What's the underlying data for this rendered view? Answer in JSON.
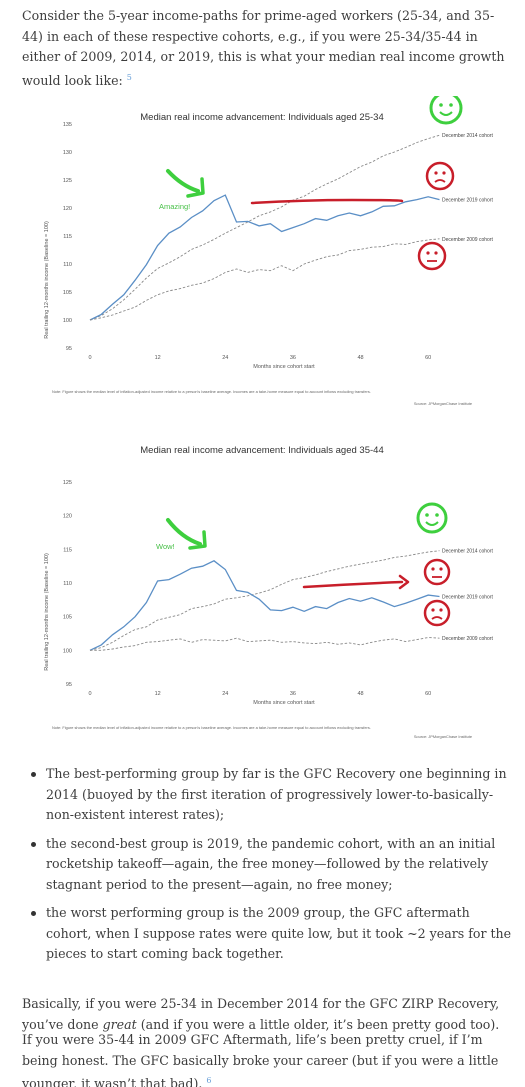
{
  "intro": {
    "text": "Consider the 5-year income-paths for prime-aged workers (25-34, and 35-44) in each of these respective cohorts, e.g., if you were 25-34/35-44 in either of 2009, 2014, or 2019, this is what your median real income growth would look like:",
    "footnote": "5"
  },
  "chart_data": [
    {
      "type": "line",
      "title": "Median real income advancement: Individuals aged 25-34",
      "xlabel": "Months since cohort start",
      "ylabel": "Real trailing 12-months income (Baseline = 100)",
      "xlim": [
        0,
        66
      ],
      "ylim": [
        95,
        135
      ],
      "xticks": [
        0,
        12,
        24,
        36,
        48,
        60
      ],
      "yticks": [
        95,
        100,
        105,
        110,
        115,
        120,
        125,
        130,
        135
      ],
      "x": [
        0,
        2,
        4,
        6,
        8,
        10,
        12,
        14,
        16,
        18,
        20,
        22,
        24,
        26,
        28,
        30,
        32,
        34,
        36,
        38,
        40,
        42,
        44,
        46,
        48,
        50,
        52,
        54,
        56,
        58,
        60,
        62
      ],
      "series": [
        {
          "name": "December 2014 cohort",
          "color": "#888888",
          "dash": true,
          "values": [
            100,
            100.8,
            102,
            103.6,
            105.5,
            107.5,
            109.2,
            110.2,
            111.3,
            112.6,
            113.4,
            114.4,
            115.5,
            116.5,
            117.5,
            118.6,
            119.3,
            120.2,
            121.4,
            122.1,
            123.3,
            124.3,
            125.2,
            126.3,
            127.4,
            128.2,
            129.3,
            130,
            130.8,
            131.7,
            132.4,
            133
          ]
        },
        {
          "name": "December 2019 cohort",
          "color": "#5b8fc6",
          "dash": false,
          "values": [
            100,
            101,
            102.8,
            104.5,
            107.1,
            109.9,
            113.3,
            115.5,
            116.6,
            118.3,
            119.5,
            121.3,
            122.3,
            117.5,
            117.6,
            116.8,
            117.2,
            115.8,
            116.5,
            117.2,
            118.1,
            117.8,
            118.6,
            119.1,
            118.6,
            119.3,
            120.3,
            120.4,
            121.1,
            121.5,
            122,
            121.5
          ]
        },
        {
          "name": "December 2009 cohort",
          "color": "#888888",
          "dash": true,
          "values": [
            100,
            100.4,
            100.9,
            101.6,
            102.3,
            103.5,
            104.5,
            105.2,
            105.6,
            106.2,
            106.6,
            107.4,
            108.5,
            109.1,
            108.5,
            109,
            108.8,
            109.7,
            108.8,
            110,
            110.7,
            111.3,
            111.6,
            112.4,
            112.6,
            113,
            113.1,
            113.6,
            113.5,
            114,
            114.3,
            114.5
          ]
        }
      ],
      "annotations": {
        "peak_label": "Amazing!"
      },
      "note": "Note: Figure shows the median level of inflation-adjusted income relative to a person's baseline average. Incomes are a take-home measure equal to account inflows excluding transfers.",
      "source": "Source: JPMorganChase Institute"
    },
    {
      "type": "line",
      "title": "Median real income advancement: Individuals aged 35-44",
      "xlabel": "Months since cohort start",
      "ylabel": "Real trailing 12-months income (Baseline = 100)",
      "xlim": [
        0,
        66
      ],
      "ylim": [
        95,
        125
      ],
      "xticks": [
        0,
        12,
        24,
        36,
        48,
        60
      ],
      "yticks": [
        95,
        100,
        105,
        110,
        115,
        120,
        125
      ],
      "x": [
        0,
        2,
        4,
        6,
        8,
        10,
        12,
        14,
        16,
        18,
        20,
        22,
        24,
        26,
        28,
        30,
        32,
        34,
        36,
        38,
        40,
        42,
        44,
        46,
        48,
        50,
        52,
        54,
        56,
        58,
        60,
        62
      ],
      "series": [
        {
          "name": "December 2014 cohort",
          "color": "#888888",
          "dash": true,
          "values": [
            100,
            100.4,
            101.2,
            102.2,
            103.1,
            103.5,
            104.5,
            104.9,
            105.3,
            106.2,
            106.5,
            106.9,
            107.6,
            107.8,
            108.1,
            108.5,
            109,
            109.8,
            110.5,
            110.8,
            111.2,
            111.7,
            112.1,
            112.5,
            112.8,
            113.1,
            113.4,
            113.8,
            114,
            114.3,
            114.6,
            114.8
          ]
        },
        {
          "name": "December 2019 cohort",
          "color": "#5b8fc6",
          "dash": false,
          "values": [
            100,
            100.8,
            102.3,
            103.5,
            105,
            107.1,
            110.3,
            110.5,
            111.3,
            112.2,
            112.5,
            113.3,
            112,
            108.9,
            108.6,
            107.6,
            106,
            105.9,
            106.4,
            105.8,
            106.5,
            106.2,
            107.1,
            107.7,
            107.3,
            107.8,
            107.2,
            106.5,
            107,
            107.6,
            108.2,
            108
          ]
        },
        {
          "name": "December 2009 cohort",
          "color": "#888888",
          "dash": true,
          "values": [
            100,
            100,
            100.2,
            100.5,
            100.7,
            101.2,
            101.3,
            101.5,
            101.7,
            101.2,
            101.6,
            101.5,
            101.4,
            101.8,
            101.3,
            101.4,
            101.5,
            101.2,
            101.3,
            101.1,
            101,
            101.2,
            100.9,
            101.1,
            100.8,
            101.2,
            101.5,
            101.7,
            101.3,
            101.6,
            101.9,
            101.8
          ]
        }
      ],
      "annotations": {
        "peak_label": "Wow!"
      },
      "note": "Note: Figure shows the median level of inflation-adjusted income relative to a person's baseline average. Incomes are a take-home measure equal to account inflows excluding transfers.",
      "source": "Source: JPMorganChase Institute"
    }
  ],
  "bullets": [
    "The best-performing group by far is the GFC Recovery one beginning in 2014 (buoyed by the first iteration of progressively lower-to-basically-non-existent interest rates);",
    "the second-best group is 2019, the pandemic cohort, with an an initial rocketship takeoff—again, the free money—followed by the relatively stagnant period to the present—again, no free money;",
    "the worst performing group is the 2009 group, the GFC aftermath cohort, when I suppose rates were quite low, but it took ~2 years for the pieces to start coming back together."
  ],
  "para1": {
    "before": "Basically, if you were 25-34 in December 2014 for the GFC ZIRP Recovery, you’ve done ",
    "italic": "great",
    "after": " (and if you were a little older, it’s been pretty good too)."
  },
  "para2": {
    "text": "If you were 35-44 in 2009 GFC Aftermath, life’s been pretty cruel, if I’m being honest. The GFC basically broke your career (but if you were a little younger, it wasn’t that bad).",
    "footnote": "6"
  },
  "colors": {
    "line_main": "#5b8fc6",
    "line_dashed": "#888888",
    "green_annot": "#3ecf3e",
    "red_annot": "#c81e2a",
    "label_green": "#48c048"
  }
}
